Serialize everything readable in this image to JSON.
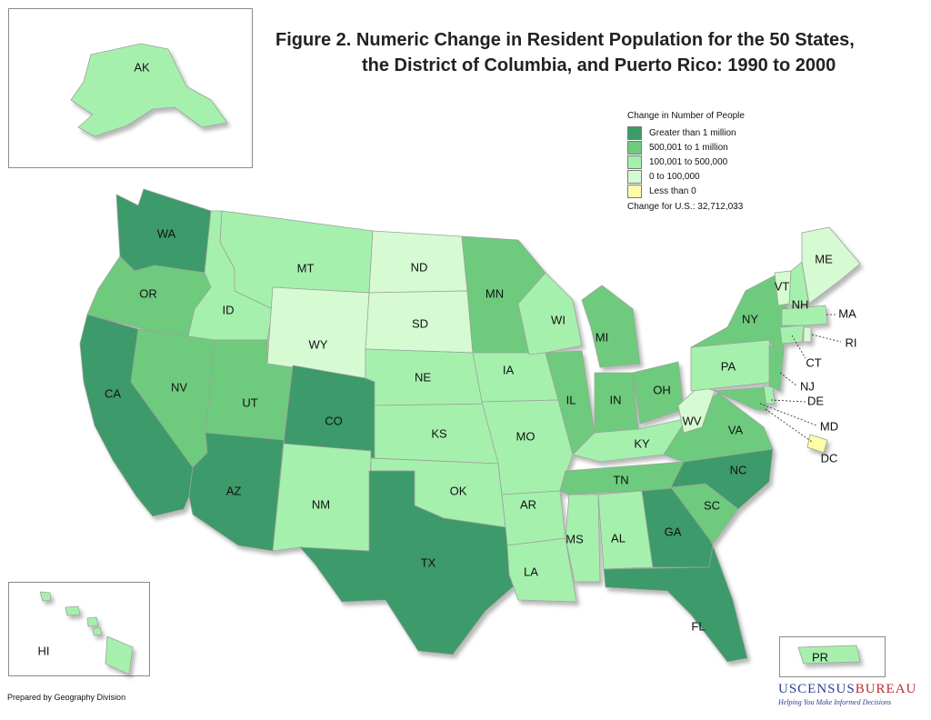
{
  "title": {
    "line1": "Figure 2.  Numeric Change in Resident Population for the 50 States,",
    "line2": "the District of Columbia, and Puerto Rico: 1990 to 2000"
  },
  "legend": {
    "heading": "Change in Number of People",
    "classes": [
      {
        "label": "Greater than 1 million",
        "color": "#3d9a6a"
      },
      {
        "label": "500,001 to 1 million",
        "color": "#6ecb7d"
      },
      {
        "label": "100,001 to 500,000",
        "color": "#a6f0ae"
      },
      {
        "label": "0 to 100,000",
        "color": "#d6fad2"
      },
      {
        "label": "Less than 0",
        "color": "#fefca8"
      }
    ],
    "us_change": "Change for U.S.: 32,712,033"
  },
  "states": {
    "AK": {
      "label": "AK",
      "class": 3
    },
    "HI": {
      "label": "HI",
      "class": 3
    },
    "PR": {
      "label": "PR",
      "class": 3
    },
    "WA": {
      "label": "WA",
      "class": 1
    },
    "OR": {
      "label": "OR",
      "class": 2
    },
    "CA": {
      "label": "CA",
      "class": 1
    },
    "ID": {
      "label": "ID",
      "class": 3
    },
    "NV": {
      "label": "NV",
      "class": 2
    },
    "UT": {
      "label": "UT",
      "class": 2
    },
    "AZ": {
      "label": "AZ",
      "class": 1
    },
    "MT": {
      "label": "MT",
      "class": 3
    },
    "WY": {
      "label": "WY",
      "class": 4
    },
    "CO": {
      "label": "CO",
      "class": 1
    },
    "NM": {
      "label": "NM",
      "class": 3
    },
    "ND": {
      "label": "ND",
      "class": 4
    },
    "SD": {
      "label": "SD",
      "class": 4
    },
    "NE": {
      "label": "NE",
      "class": 3
    },
    "KS": {
      "label": "KS",
      "class": 3
    },
    "OK": {
      "label": "OK",
      "class": 3
    },
    "TX": {
      "label": "TX",
      "class": 1
    },
    "MN": {
      "label": "MN",
      "class": 2
    },
    "IA": {
      "label": "IA",
      "class": 3
    },
    "MO": {
      "label": "MO",
      "class": 3
    },
    "AR": {
      "label": "AR",
      "class": 3
    },
    "LA": {
      "label": "LA",
      "class": 3
    },
    "WI": {
      "label": "WI",
      "class": 3
    },
    "IL": {
      "label": "IL",
      "class": 2
    },
    "MI": {
      "label": "MI",
      "class": 2
    },
    "IN": {
      "label": "IN",
      "class": 2
    },
    "OH": {
      "label": "OH",
      "class": 2
    },
    "KY": {
      "label": "KY",
      "class": 3
    },
    "TN": {
      "label": "TN",
      "class": 2
    },
    "MS": {
      "label": "MS",
      "class": 3
    },
    "AL": {
      "label": "AL",
      "class": 3
    },
    "GA": {
      "label": "GA",
      "class": 1
    },
    "FL": {
      "label": "FL",
      "class": 1
    },
    "SC": {
      "label": "SC",
      "class": 2
    },
    "NC": {
      "label": "NC",
      "class": 1
    },
    "VA": {
      "label": "VA",
      "class": 2
    },
    "WV": {
      "label": "WV",
      "class": 4
    },
    "PA": {
      "label": "PA",
      "class": 3
    },
    "NY": {
      "label": "NY",
      "class": 2
    },
    "VT": {
      "label": "VT",
      "class": 4
    },
    "NH": {
      "label": "NH",
      "class": 3
    },
    "ME": {
      "label": "ME",
      "class": 4
    },
    "MA": {
      "label": "MA",
      "class": 3
    },
    "RI": {
      "label": "RI",
      "class": 4
    },
    "CT": {
      "label": "CT",
      "class": 3
    },
    "NJ": {
      "label": "NJ",
      "class": 2
    },
    "DE": {
      "label": "DE",
      "class": 3
    },
    "MD": {
      "label": "MD",
      "class": 2
    },
    "DC": {
      "label": "DC",
      "class": 5
    }
  },
  "credit": "Prepared by Geography Division",
  "logo": {
    "pre": "USCENSUS",
    "post": "BUREAU",
    "tagline": "Helping You Make Informed Decisions"
  }
}
